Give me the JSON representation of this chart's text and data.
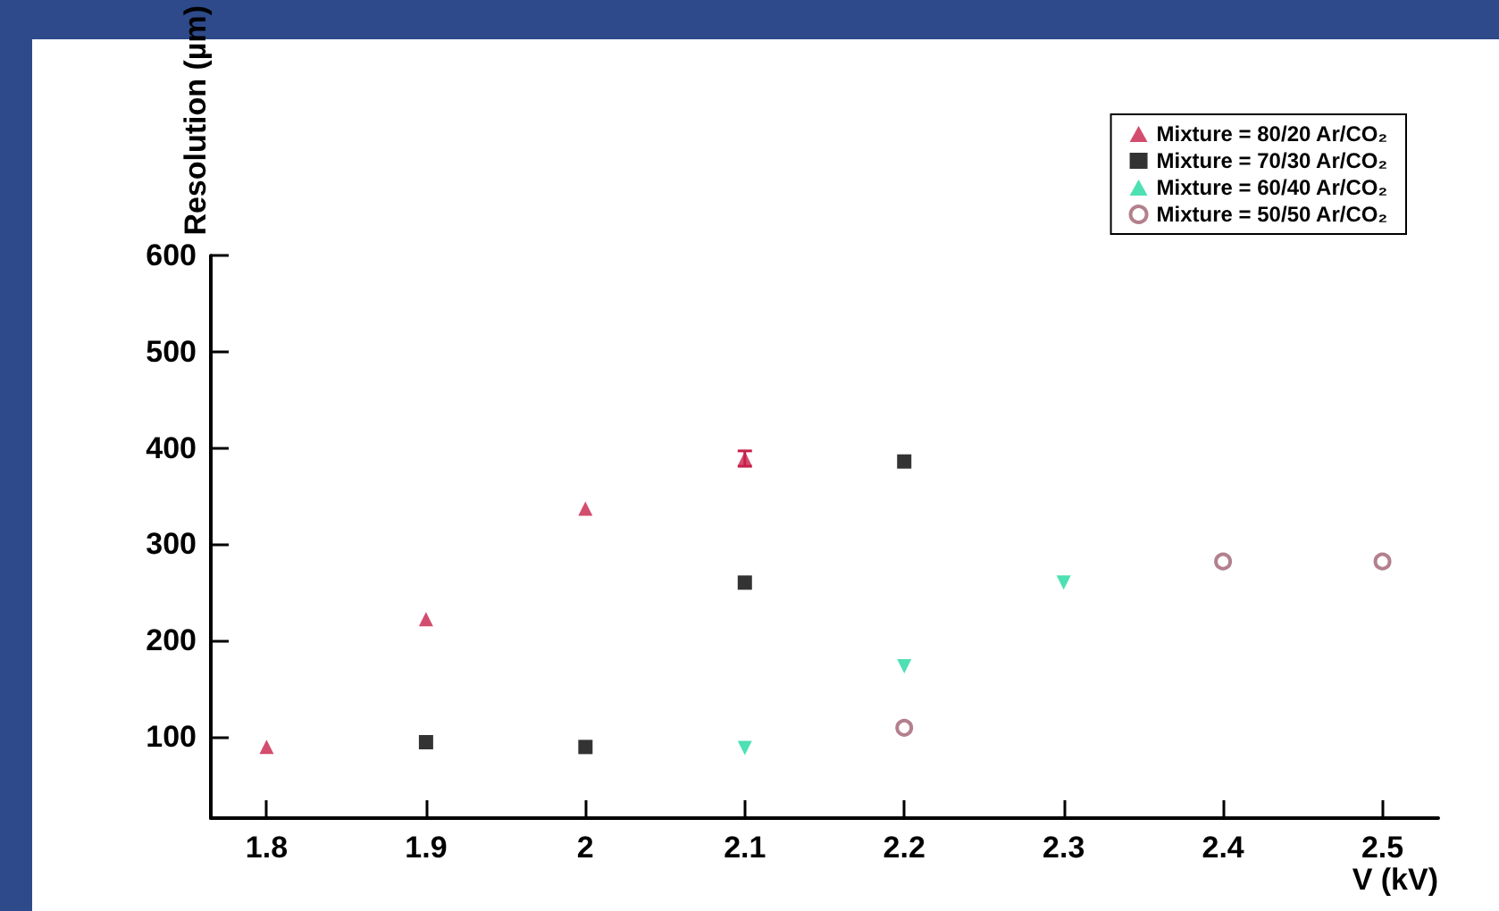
{
  "chart_data": {
    "type": "scatter",
    "xlabel": "V (kV)",
    "ylabel": "Resolution (µm)",
    "xlim": [
      1.765,
      2.535
    ],
    "xticks": [
      1.8,
      1.9,
      {
        "value": 2.0,
        "label": "2"
      },
      2.1,
      2.2,
      2.3,
      2.4,
      2.5
    ],
    "ylim": [
      15,
      600
    ],
    "yticks": [
      100,
      200,
      300,
      400,
      500,
      600
    ],
    "grid": false,
    "legend": "top right",
    "series": [
      {
        "name": "Mixture = 80/20 Ar/CO₂",
        "color": "#c8204a",
        "marker": "triangle",
        "x": [
          1.8,
          1.9,
          2.0,
          2.1
        ],
        "values": [
          89,
          222,
          337,
          389
        ],
        "errors": [
          null,
          null,
          null,
          8
        ]
      },
      {
        "name": "Mixture = 70/30 Ar/CO₂",
        "color": "#000000",
        "marker": "square",
        "x": [
          1.9,
          2.0,
          2.1,
          2.2
        ],
        "values": [
          94,
          89,
          260,
          386
        ]
      },
      {
        "name": "Mixture = 60/40 Ar/CO₂",
        "color": "#20d8a0",
        "marker": "triangle-down",
        "x": [
          2.1,
          2.2,
          2.3
        ],
        "values": [
          88,
          173,
          260
        ]
      },
      {
        "name": "Mixture = 50/50 Ar/CO₂",
        "color": "#a06070",
        "marker": "open-circle",
        "x": [
          2.2,
          2.4,
          2.5
        ],
        "values": [
          109,
          282,
          282
        ]
      }
    ]
  }
}
